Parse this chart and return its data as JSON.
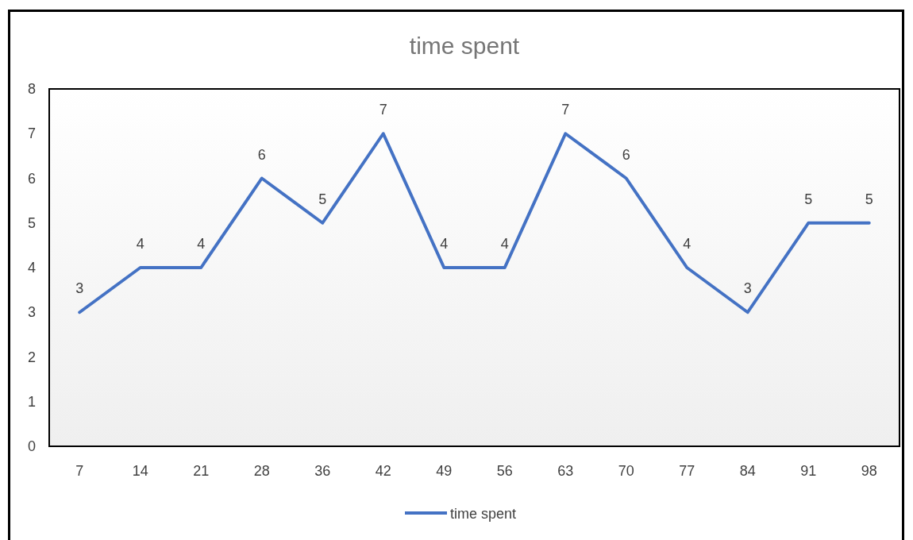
{
  "chart_data": {
    "type": "line",
    "title": "time spent",
    "categories": [
      "7",
      "14",
      "21",
      "28",
      "36",
      "42",
      "49",
      "56",
      "63",
      "70",
      "77",
      "84",
      "91",
      "98"
    ],
    "series": [
      {
        "name": "time spent",
        "color": "#4472c4",
        "values": [
          3,
          4,
          4,
          6,
          5,
          7,
          4,
          4,
          7,
          6,
          4,
          3,
          5,
          5
        ]
      }
    ],
    "ylim": [
      0,
      8
    ],
    "yticks": [
      0,
      1,
      2,
      3,
      4,
      5,
      6,
      7,
      8
    ],
    "data_labels": true,
    "legend": "bottom",
    "grid": false,
    "marker": "none",
    "line_style": "solid"
  }
}
